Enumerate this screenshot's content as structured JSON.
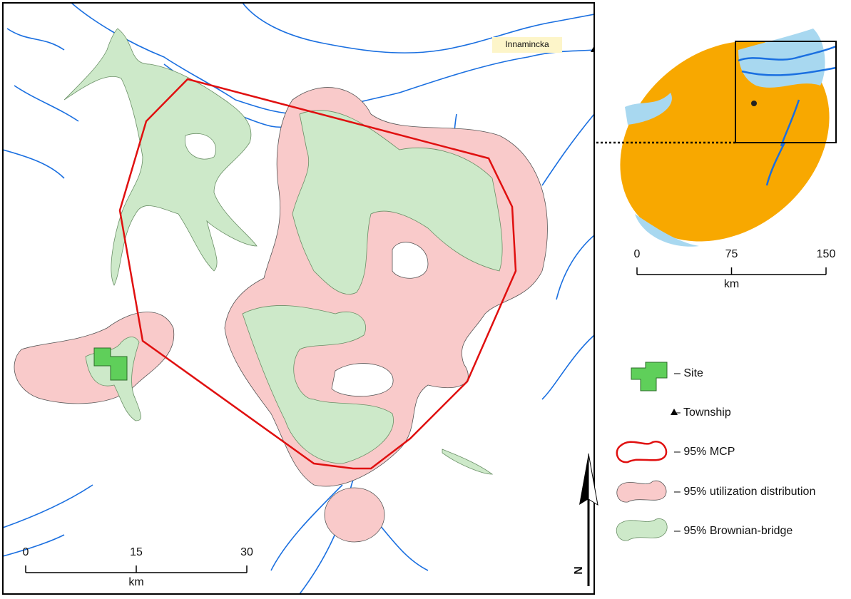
{
  "map": {
    "place_label": "Innamincka",
    "north_label": "N",
    "main_scale": {
      "ticks": [
        0,
        15,
        30
      ],
      "unit": "km"
    },
    "inset_scale": {
      "ticks": [
        0,
        75,
        150
      ],
      "unit": "km"
    },
    "legend": [
      {
        "label": "– Site"
      },
      {
        "label": "– Township"
      },
      {
        "label": "– 95% MCP"
      },
      {
        "label": "– 95% utilization distribution"
      },
      {
        "label": "– 95% Brownian-bridge"
      }
    ]
  }
}
